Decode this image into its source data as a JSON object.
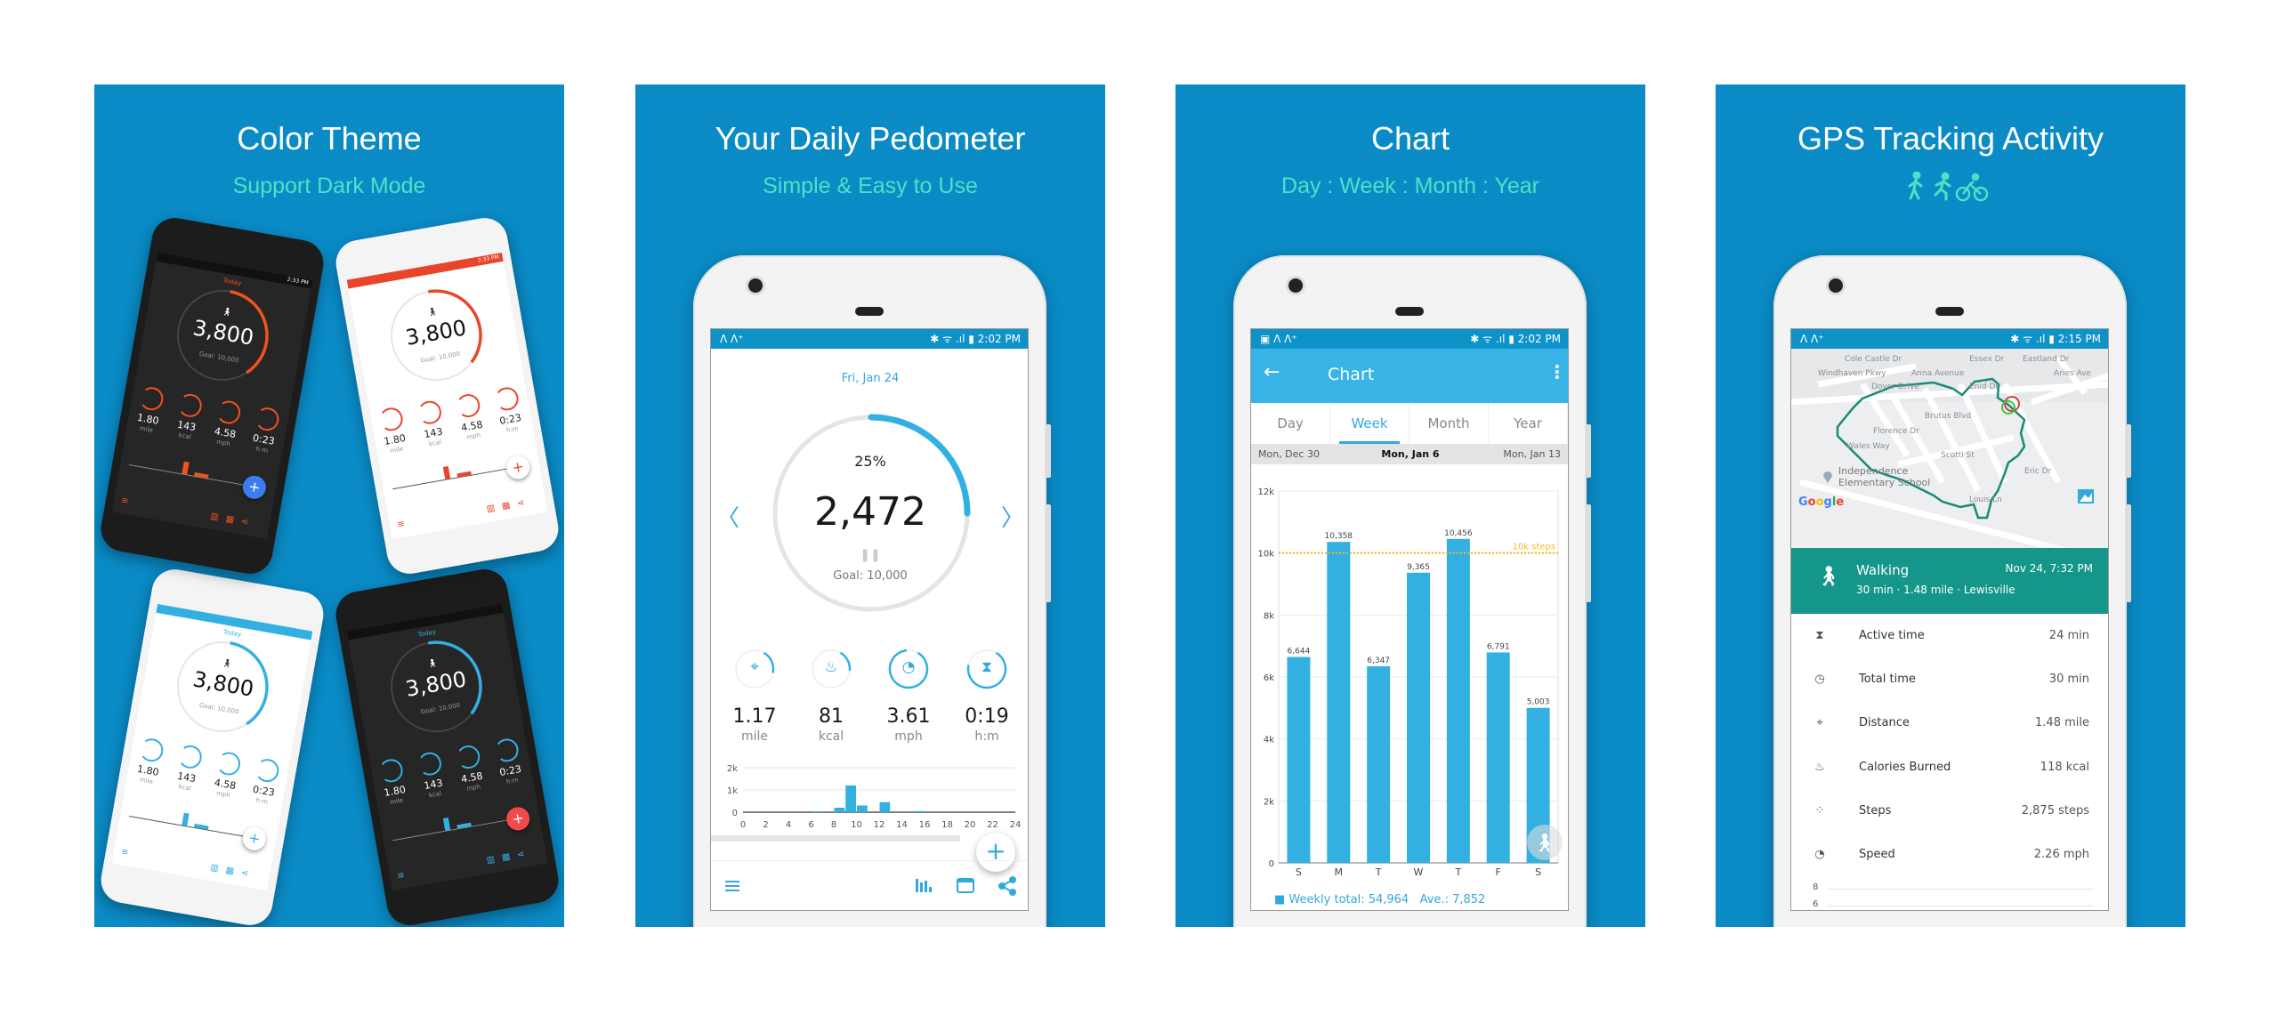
{
  "colors": {
    "panel_bg": "#0a8bc6",
    "subtitle": "#4fe0c6",
    "accent": "#33b0e2",
    "status_bar": "#0e93c9",
    "toolbar": "#38b4e6",
    "goal_line": "#f5b921",
    "activity_header": "#15968a",
    "route": "#1a8a78",
    "dark_accent": "#f0521e",
    "red_accent": "#e8452c"
  },
  "panels": [
    {
      "title": "Color Theme",
      "subtitle": "Support Dark Mode"
    },
    {
      "title": "Your Daily Pedometer",
      "subtitle": "Simple & Easy to Use"
    },
    {
      "title": "Chart",
      "subtitle": "Day : Week : Month : Year"
    },
    {
      "title": "GPS Tracking Activity",
      "subtitle_icons": [
        "walk-icon",
        "run-icon",
        "bike-icon"
      ]
    }
  ],
  "collage": {
    "phones": [
      {
        "theme": "light",
        "accent": "#33b0e2",
        "fab": "#ffffff",
        "day": "Today",
        "steps": "3,800",
        "goal": "Goal: 10,000",
        "stats": [
          {
            "value": "1.80",
            "unit": "mile"
          },
          {
            "value": "143",
            "unit": "kcal"
          },
          {
            "value": "4.58",
            "unit": "mph"
          },
          {
            "value": "0:23",
            "unit": "h:m"
          }
        ]
      },
      {
        "theme": "dark",
        "accent": "#33b0e2",
        "fab": "#f04a4a",
        "day": "Today",
        "steps": "3,800",
        "goal": "Goal: 10,000",
        "stats": [
          {
            "value": "1.80",
            "unit": "mile"
          },
          {
            "value": "143",
            "unit": "kcal"
          },
          {
            "value": "4.58",
            "unit": "mph"
          },
          {
            "value": "0:23",
            "unit": "h:m"
          }
        ]
      },
      {
        "theme": "light",
        "accent": "#e8452c",
        "fab": "#ffffff",
        "day": "",
        "time": "2:33 PM",
        "steps": "3,800",
        "goal": "Goal: 10,000",
        "stats": [
          {
            "value": "1.80",
            "unit": "mile"
          },
          {
            "value": "143",
            "unit": "kcal"
          },
          {
            "value": "4.58",
            "unit": "mph"
          },
          {
            "value": "0:23",
            "unit": "h:m"
          }
        ]
      },
      {
        "theme": "dark",
        "accent": "#f0521e",
        "fab": "#3b7df0",
        "day": "Today",
        "time": "2:33 PM",
        "steps": "3,800",
        "goal": "Goal: 10,000",
        "stats": [
          {
            "value": "1.80",
            "unit": "mile"
          },
          {
            "value": "143",
            "unit": "kcal"
          },
          {
            "value": "4.58",
            "unit": "mph"
          },
          {
            "value": "0:23",
            "unit": "h:m"
          }
        ]
      }
    ]
  },
  "pedometer": {
    "status_left": "ᐱ ᐱ⁺",
    "status_right": "✱ ᯤ .ıl ▮ 2:02 PM",
    "date": "Fri, Jan 24",
    "percent": "25%",
    "progress": 0.25,
    "steps": "2,472",
    "goal": "Goal: 10,000",
    "prev_icon": "chevron-left-icon",
    "next_icon": "chevron-right-icon",
    "stats": [
      {
        "icon": "location-pin-icon",
        "value": "1.17",
        "unit": "mile",
        "progress": 0.2
      },
      {
        "icon": "flame-icon",
        "value": "81",
        "unit": "kcal",
        "progress": 0.18
      },
      {
        "icon": "speedometer-icon",
        "value": "3.61",
        "unit": "mph",
        "progress": 0.9
      },
      {
        "icon": "hourglass-icon",
        "value": "0:19",
        "unit": "h:m",
        "progress": 0.7
      }
    ],
    "fab_label": "+",
    "nav": [
      "menu-icon",
      "bar-chart-icon",
      "calendar-icon",
      "share-icon"
    ]
  },
  "chart_screen": {
    "status_left": "▣ ᐱ ᐱ⁺",
    "status_right": "✱ ᯤ .ıl ▮ 2:02 PM",
    "title": "Chart",
    "tabs": [
      "Day",
      "Week",
      "Month",
      "Year"
    ],
    "active_tab": "Week",
    "dates": {
      "prev": "Mon, Dec 30",
      "current": "Mon, Jan 6",
      "next": "Mon, Jan 13"
    },
    "goal_label": "10k steps",
    "footer": {
      "total": "Weekly total: 54,964",
      "average": "Ave.: 7,852"
    }
  },
  "gps": {
    "status_left": "ᐱ ᐱ⁺",
    "status_right": "✱ ᯤ .ıl ▮ 2:15 PM",
    "map": {
      "labels": [
        "Cole Castle Dr",
        "Windhaven Pkwy",
        "Dover Drive",
        "Anna Avenue",
        "Essex Dr",
        "Eastland Dr",
        "Enid Dr",
        "Aries Ave",
        "Brutus Blvd",
        "Florence Dr",
        "Wales Way",
        "Scotti St",
        "Louis Ln",
        "Eric Dr"
      ],
      "poi": [
        "Independence",
        "Elementary School"
      ],
      "logo": "Google"
    },
    "activity": {
      "type": "Walking",
      "summary": "30 min · 1.48 mile · Lewisville",
      "datetime": "Nov 24, 7:32 PM"
    },
    "rows": [
      {
        "icon": "hourglass-icon",
        "label": "Active time",
        "value": "24 min"
      },
      {
        "icon": "clock-icon",
        "label": "Total time",
        "value": "30 min"
      },
      {
        "icon": "location-pin-icon",
        "label": "Distance",
        "value": "1.48 mile"
      },
      {
        "icon": "flame-icon",
        "label": "Calories Burned",
        "value": "118 kcal"
      },
      {
        "icon": "footsteps-icon",
        "label": "Steps",
        "value": "2,875 steps"
      },
      {
        "icon": "speedometer-icon",
        "label": "Speed",
        "value": "2.26 mph"
      }
    ],
    "speed_chart": {
      "yticks": [
        "8",
        "6"
      ]
    }
  },
  "chart_data": [
    {
      "type": "bar",
      "categories": [
        "S",
        "M",
        "T",
        "W",
        "T",
        "F",
        "S"
      ],
      "values": [
        6644,
        10358,
        6347,
        9365,
        10456,
        6791,
        5003
      ],
      "value_labels": [
        "6,644",
        "10,358",
        "6,347",
        "9,365",
        "10,456",
        "6,791",
        "5,003"
      ],
      "ylim": [
        0,
        12000
      ],
      "yticks": [
        "0",
        "2k",
        "4k",
        "6k",
        "8k",
        "10k",
        "12k"
      ],
      "goal_line": 10000,
      "grid": true
    },
    {
      "type": "bar",
      "x": [
        6,
        8,
        9,
        10,
        12,
        15
      ],
      "values": [
        40,
        200,
        1200,
        300,
        450,
        50
      ],
      "xlim": [
        0,
        24
      ],
      "ylim": [
        0,
        2000
      ],
      "xticks": [
        "0",
        "2",
        "4",
        "6",
        "8",
        "10",
        "12",
        "14",
        "16",
        "18",
        "20",
        "22",
        "24"
      ],
      "yticks": [
        "0",
        "1k",
        "2k"
      ],
      "grid": true
    }
  ]
}
